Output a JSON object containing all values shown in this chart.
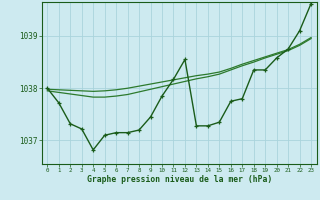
{
  "background_color": "#cdeaf0",
  "grid_color": "#aad4dc",
  "line_color_dark": "#1a5c1a",
  "line_color_mid": "#2d7a2d",
  "xlabel": "Graphe pression niveau de la mer (hPa)",
  "xlim": [
    -0.5,
    23.5
  ],
  "ylim": [
    1036.55,
    1039.65
  ],
  "yticks": [
    1037,
    1038,
    1039
  ],
  "xticks": [
    0,
    1,
    2,
    3,
    4,
    5,
    6,
    7,
    8,
    9,
    10,
    11,
    12,
    13,
    14,
    15,
    16,
    17,
    18,
    19,
    20,
    21,
    22,
    23
  ],
  "hours": [
    0,
    1,
    2,
    3,
    4,
    5,
    6,
    7,
    8,
    9,
    10,
    11,
    12,
    13,
    14,
    15,
    16,
    17,
    18,
    19,
    20,
    21,
    22,
    23
  ],
  "pressure_main": [
    1038.0,
    1037.72,
    1037.32,
    1037.22,
    1036.82,
    1037.1,
    1037.15,
    1037.15,
    1037.2,
    1037.45,
    1037.85,
    1038.17,
    1038.55,
    1037.28,
    1037.28,
    1037.35,
    1037.75,
    1037.8,
    1038.35,
    1038.35,
    1038.58,
    1038.75,
    1039.1,
    1039.62
  ],
  "pressure_smooth1": [
    1037.95,
    1037.92,
    1037.89,
    1037.86,
    1037.83,
    1037.83,
    1037.85,
    1037.88,
    1037.93,
    1037.98,
    1038.03,
    1038.08,
    1038.13,
    1038.18,
    1038.22,
    1038.27,
    1038.35,
    1038.43,
    1038.5,
    1038.58,
    1038.65,
    1038.72,
    1038.82,
    1038.95
  ],
  "pressure_smooth2": [
    1037.98,
    1037.97,
    1037.96,
    1037.95,
    1037.94,
    1037.95,
    1037.97,
    1038.0,
    1038.04,
    1038.08,
    1038.12,
    1038.16,
    1038.2,
    1038.24,
    1038.27,
    1038.31,
    1038.38,
    1038.46,
    1038.53,
    1038.6,
    1038.67,
    1038.74,
    1038.84,
    1038.97
  ]
}
